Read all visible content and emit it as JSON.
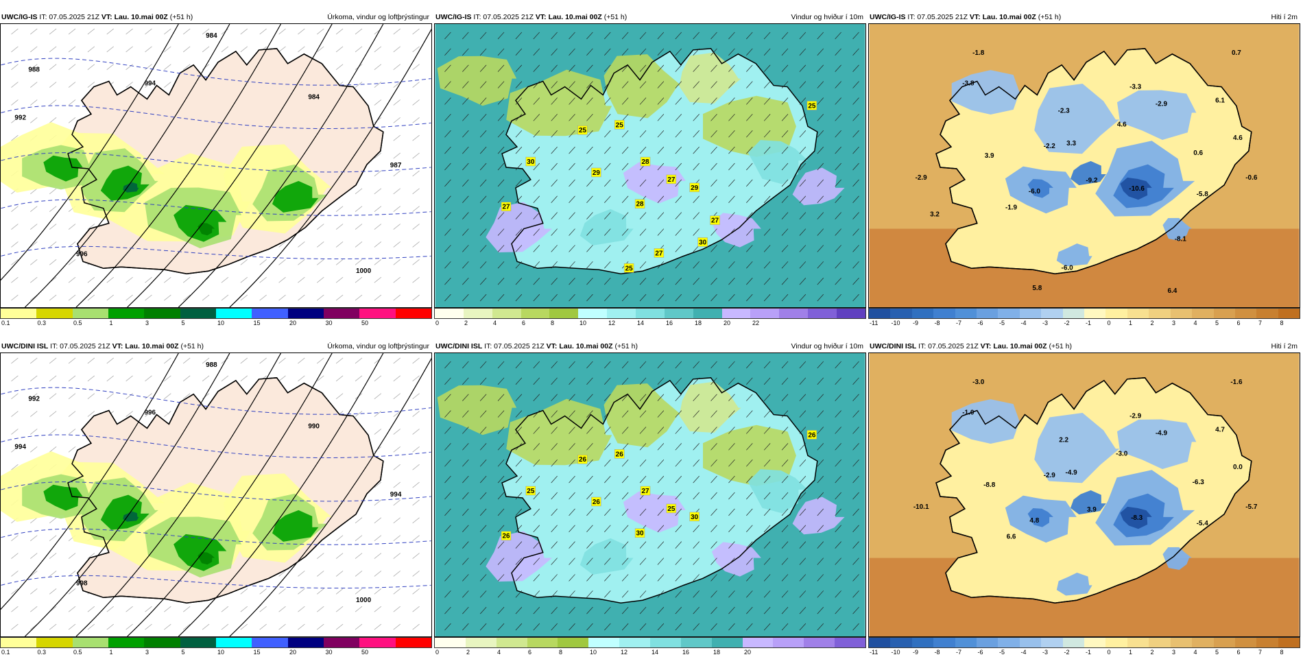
{
  "panels": [
    {
      "id": "p1",
      "source": "UWC/IG-IS",
      "it": "IT: 07.05.2025 21Z",
      "vt_label": "VT:",
      "vt": "Lau. 10.mai 00Z",
      "lead": "(+51 h)",
      "field": "Úrkoma, vindur og loftþrýstingur",
      "kind": "precip",
      "pressure_labels": [
        "984",
        "988",
        "992",
        "994",
        "996",
        "1000",
        "984",
        "987"
      ],
      "scale_colors": [
        "#ffff99",
        "#d6d600",
        "#a8e070",
        "#00a000",
        "#008000",
        "#006040",
        "#00ffff",
        "#4060ff",
        "#000080",
        "#800060",
        "#ff1080",
        "#ff0000"
      ],
      "ticks": [
        "0.1",
        "0.3",
        "0.5",
        "1",
        "3",
        "5",
        "10",
        "15",
        "20",
        "30",
        "50"
      ]
    },
    {
      "id": "p2",
      "source": "UWC/IG-IS",
      "it": "IT: 07.05.2025 21Z",
      "vt_label": "VT:",
      "vt": "Lau. 10.mai 00Z",
      "lead": "(+51 h)",
      "field": "Vindur og hviður í 10m",
      "kind": "wind",
      "gust_labels": [
        "25",
        "25",
        "25",
        "30",
        "28",
        "29",
        "27",
        "29",
        "27",
        "28",
        "27",
        "30",
        "27",
        "25"
      ],
      "scale_colors": [
        "#ffffee",
        "#e8f5c0",
        "#d0e890",
        "#b8d860",
        "#a0c840",
        "#c0ffff",
        "#a0f0f0",
        "#80e0e0",
        "#60c8c8",
        "#40b0b0",
        "#c8b8ff",
        "#b8a0f8",
        "#a080e8",
        "#8060d8",
        "#6040c0"
      ],
      "ticks": [
        "0",
        "2",
        "4",
        "6",
        "8",
        "10",
        "12",
        "14",
        "16",
        "18",
        "20",
        "22"
      ]
    },
    {
      "id": "p3",
      "source": "UWC/IG-IS",
      "it": "IT: 07.05.2025 21Z",
      "vt_label": "VT:",
      "vt": "Lau. 10.mai 00Z",
      "lead": "(+51 h)",
      "field": "Hiti í 2m",
      "kind": "temp",
      "temp_labels": [
        "-1.8",
        "0.7",
        "-3.8",
        "-3.3",
        "6.1",
        "-2.3",
        "-2.9",
        "4.6",
        "4.6",
        "3.3",
        "-2.2",
        "0.6",
        "3.9",
        "-2.9",
        "-0.6",
        "-6.0",
        "-9.2",
        "-10.6",
        "-5.8",
        "-1.9",
        "3.2",
        "-8.1",
        "-6.0",
        "5.8",
        "6.4"
      ],
      "scale_colors": [
        "#2050a0",
        "#2860b0",
        "#3070c0",
        "#4080d0",
        "#5090d8",
        "#6aa0e0",
        "#80b0e8",
        "#98c0ec",
        "#b0d0f0",
        "#d0e8e0",
        "#fff8c0",
        "#fff0a0",
        "#f8e090",
        "#f0d080",
        "#e8c070",
        "#e0b060",
        "#d8a050",
        "#d09040",
        "#c88030",
        "#c07020"
      ],
      "ticks": [
        "-11",
        "-10",
        "-9",
        "-8",
        "-7",
        "-6",
        "-5",
        "-4",
        "-3",
        "-2",
        "-1",
        "0",
        "1",
        "2",
        "3",
        "4",
        "5",
        "6",
        "7",
        "8"
      ]
    },
    {
      "id": "p4",
      "source": "UWC/DINI ISL",
      "it": "IT: 07.05.2025 21Z",
      "vt_label": "VT:",
      "vt": "Lau. 10.mai 00Z",
      "lead": "(+51 h)",
      "field": "Úrkoma, vindur og loftþrýstingur",
      "kind": "precip",
      "pressure_labels": [
        "988",
        "992",
        "994",
        "996",
        "998",
        "1000",
        "990",
        "994"
      ],
      "scale_colors": [
        "#ffff99",
        "#d6d600",
        "#a8e070",
        "#00a000",
        "#008000",
        "#006040",
        "#00ffff",
        "#4060ff",
        "#000080",
        "#800060",
        "#ff1080",
        "#ff0000"
      ],
      "ticks": [
        "0.1",
        "0.3",
        "0.5",
        "1",
        "3",
        "5",
        "10",
        "15",
        "20",
        "30",
        "50"
      ]
    },
    {
      "id": "p5",
      "source": "UWC/DINI ISL",
      "it": "IT: 07.05.2025 21Z",
      "vt_label": "VT:",
      "vt": "Lau. 10.mai 00Z",
      "lead": "(+51 h)",
      "field": "Vindur og hviður í 10m",
      "kind": "wind",
      "gust_labels": [
        "26",
        "26",
        "26",
        "25",
        "27",
        "26",
        "25",
        "30",
        "26",
        "30"
      ],
      "scale_colors": [
        "#ffffee",
        "#e8f5c0",
        "#d0e890",
        "#b8d860",
        "#a0c840",
        "#c0ffff",
        "#a0f0f0",
        "#80e0e0",
        "#60c8c8",
        "#40b0b0",
        "#c8b8ff",
        "#b8a0f8",
        "#a080e8",
        "#8060d8"
      ],
      "ticks": [
        "0",
        "2",
        "4",
        "6",
        "8",
        "10",
        "12",
        "14",
        "16",
        "18",
        "20"
      ]
    },
    {
      "id": "p6",
      "source": "UWC/DINI ISL",
      "it": "IT: 07.05.2025 21Z",
      "vt_label": "VT:",
      "vt": "Lau. 10.mai 00Z",
      "lead": "(+51 h)",
      "field": "Hiti í 2m",
      "kind": "temp",
      "temp_labels": [
        "-3.0",
        "-1.6",
        "-1.0",
        "-2.9",
        "4.7",
        "2.2",
        "-4.9",
        "-3.0",
        "0.0",
        "-4.9",
        "-2.9",
        "-6.3",
        "-8.8",
        "-10.1",
        "-5.7",
        "4.8",
        "3.9",
        "-8.3",
        "-5.4",
        "6.6"
      ],
      "scale_colors": [
        "#2050a0",
        "#2860b0",
        "#3070c0",
        "#4080d0",
        "#5090d8",
        "#6aa0e0",
        "#80b0e8",
        "#98c0ec",
        "#b0d0f0",
        "#d0e8e0",
        "#fff8c0",
        "#fff0a0",
        "#f8e090",
        "#f0d080",
        "#e8c070",
        "#e0b060",
        "#d8a050",
        "#d09040",
        "#c88030",
        "#c07020"
      ],
      "ticks": [
        "-11",
        "-10",
        "-9",
        "-8",
        "-7",
        "-6",
        "-5",
        "-4",
        "-3",
        "-2",
        "-1",
        "0",
        "1",
        "2",
        "3",
        "4",
        "5",
        "6",
        "7",
        "8"
      ]
    }
  ]
}
